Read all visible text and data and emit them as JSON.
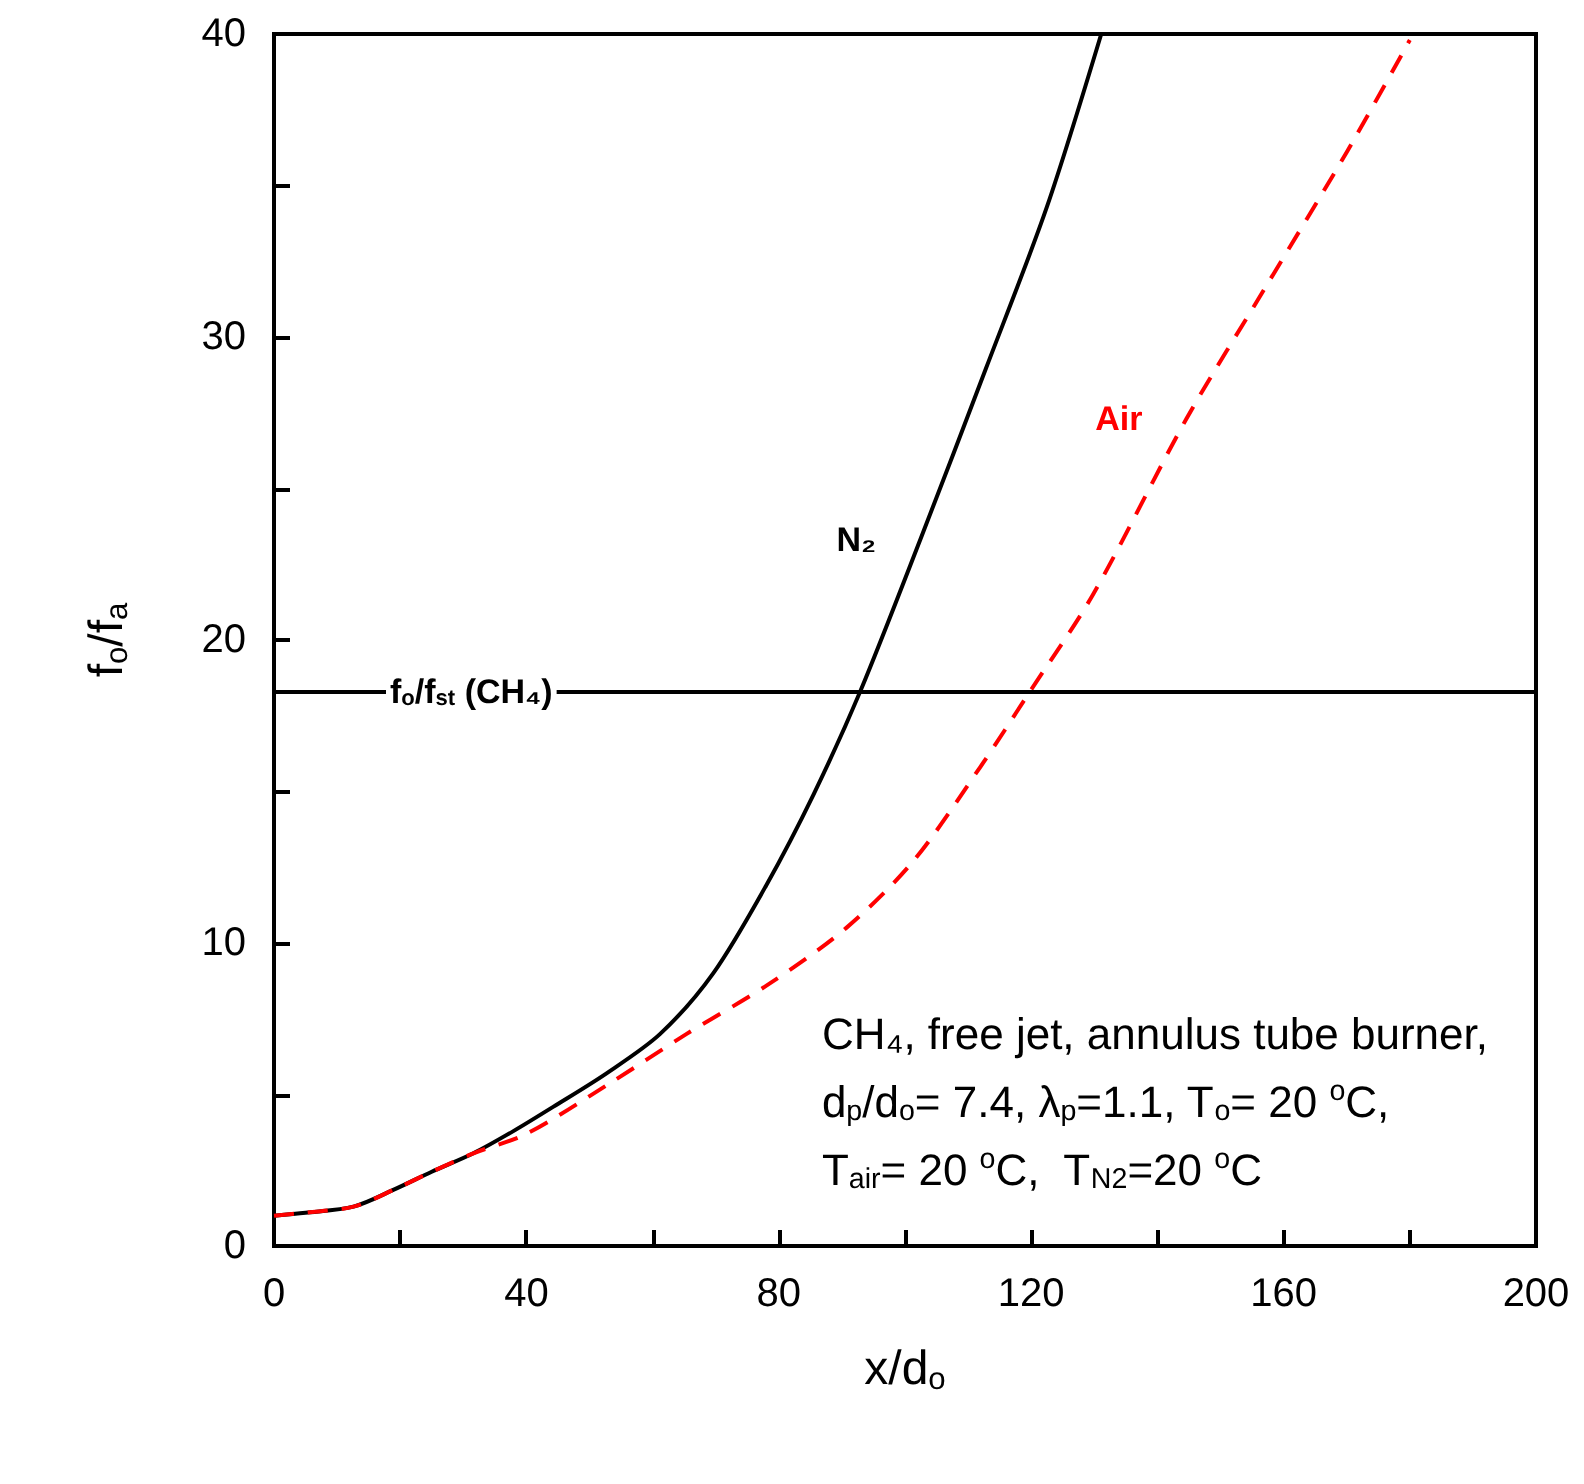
{
  "chart_data": {
    "type": "line",
    "xlabel": "x/d$_{o}$",
    "ylabel": "f$_{o}$/f$_{a}$",
    "xlim": [
      0,
      200
    ],
    "ylim": [
      0,
      40
    ],
    "xticks": [
      0,
      {
        "value": 20,
        "label": null
      },
      40,
      {
        "value": 60,
        "label": null
      },
      80,
      {
        "value": 100,
        "label": null
      },
      120,
      {
        "value": 140,
        "label": null
      },
      160,
      {
        "value": 180,
        "label": null
      },
      200
    ],
    "yticks": [
      0,
      {
        "value": 5,
        "label": null
      },
      10,
      {
        "value": 15,
        "label": null
      },
      20,
      {
        "value": 25,
        "label": null
      },
      30,
      {
        "value": 35,
        "label": null
      },
      40
    ],
    "grid": false,
    "legend": false,
    "marker": "none",
    "series": [
      {
        "name": "N₂",
        "color": "#000000",
        "line_style": "solid",
        "x": [
          0,
          5,
          12.6,
          18.9,
          25,
          31.6,
          38,
          44.3,
          52.7,
          61.2,
          69.6,
          78,
          85.5,
          92.9,
          102.4,
          112.9,
          122.5,
          131.1
        ],
        "values": [
          1,
          1.1,
          1.3,
          1.85,
          2.45,
          3.06,
          3.8,
          4.6,
          5.7,
          7,
          9,
          11.9,
          14.9,
          18.3,
          23.3,
          29,
          34.3,
          40
        ]
      },
      {
        "name": "Air",
        "color": "#ff0000",
        "line_style": "dashed",
        "x": [
          0,
          5,
          12.6,
          18.9,
          25,
          31.6,
          40,
          52.7,
          65.4,
          78.1,
          90.7,
          101.3,
          111.9,
          119.8,
          129.8,
          144.6,
          157.3,
          170,
          180
        ],
        "values": [
          1,
          1.1,
          1.3,
          1.85,
          2.45,
          3.06,
          3.7,
          5.3,
          7,
          8.6,
          10.5,
          12.7,
          15.8,
          18.3,
          21.5,
          27.3,
          31.7,
          36.1,
          39.8
        ]
      }
    ],
    "ref_lines": [
      {
        "axis": "y",
        "value": 18.3,
        "label": "f$_{o}$/f$_{st}$ (CH₄)",
        "color": "#000000"
      }
    ],
    "annotations": [
      "CH₄, free jet, annulus tube burner,",
      "d$_{p}$/d$_{o}$= 7.4, λ$_{p}$=1.1, T$_{o}$= 20 $^{o}$C,",
      "T$_{air}$= 20 $^{o}$C,  T$_{N2}$=20 $^{o}$C"
    ]
  }
}
